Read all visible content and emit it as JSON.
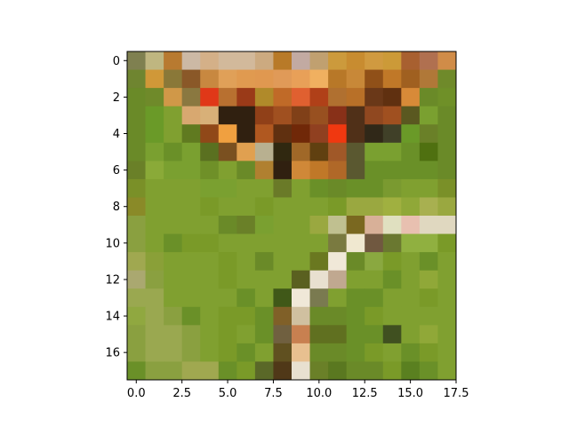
{
  "chart_data": {
    "type": "heatmap",
    "title": "",
    "xlabel": "",
    "ylabel": "",
    "xlim": [
      -0.5,
      17.5
    ],
    "ylim": [
      17.5,
      -0.5
    ],
    "grid": false,
    "x_ticks": [
      {
        "value": 0.0,
        "label": "0.0"
      },
      {
        "value": 2.5,
        "label": "2.5"
      },
      {
        "value": 5.0,
        "label": "5.0"
      },
      {
        "value": 7.5,
        "label": "7.5"
      },
      {
        "value": 10.0,
        "label": "10.0"
      },
      {
        "value": 12.5,
        "label": "12.5"
      },
      {
        "value": 15.0,
        "label": "15.0"
      },
      {
        "value": 17.5,
        "label": "17.5"
      }
    ],
    "y_ticks": [
      {
        "value": 0,
        "label": "0"
      },
      {
        "value": 2,
        "label": "2"
      },
      {
        "value": 4,
        "label": "4"
      },
      {
        "value": 6,
        "label": "6"
      },
      {
        "value": 8,
        "label": "8"
      },
      {
        "value": 10,
        "label": "10"
      },
      {
        "value": 12,
        "label": "12"
      },
      {
        "value": 14,
        "label": "14"
      },
      {
        "value": 16,
        "label": "16"
      }
    ],
    "pixels": [
      [
        "#7f8050",
        "#bfb680",
        "#b87a30",
        "#ccb9a5",
        "#d4b088",
        "#d2b99b",
        "#d2b99b",
        "#ccaa80",
        "#b87a28",
        "#c2aaa2",
        "#c0a070",
        "#cc9a3c",
        "#c88c30",
        "#d09a40",
        "#cc9a38",
        "#a86030",
        "#b07050",
        "#d08c48"
      ],
      [
        "#6f8530",
        "#d09838",
        "#8a7838",
        "#8a5828",
        "#c88840",
        "#e0a058",
        "#e09a50",
        "#e09850",
        "#e09a58",
        "#e8a058",
        "#f0b060",
        "#b87828",
        "#c88838",
        "#905018",
        "#c07828",
        "#a06020",
        "#b07838",
        "#6f8a2a"
      ],
      [
        "#6a8a28",
        "#6f8a2a",
        "#d09848",
        "#8a7840",
        "#e03818",
        "#b87030",
        "#9a3a18",
        "#b08a2a",
        "#c06a28",
        "#e06030",
        "#b04018",
        "#b07030",
        "#b87028",
        "#6a3818",
        "#603010",
        "#d88a38",
        "#6a8a28",
        "#6f9028"
      ],
      [
        "#6a8a28",
        "#6a9a28",
        "#80a030",
        "#d8a870",
        "#d8b078",
        "#302010",
        "#302010",
        "#904018",
        "#a05020",
        "#804018",
        "#985020",
        "#883018",
        "#503018",
        "#904820",
        "#a05020",
        "#5a5820",
        "#7aa030",
        "#6a8a28"
      ],
      [
        "#6a8a28",
        "#6a9a28",
        "#80a030",
        "#607a20",
        "#904818",
        "#f0a040",
        "#302010",
        "#b05820",
        "#603010",
        "#702808",
        "#904020",
        "#f03810",
        "#503018",
        "#302818",
        "#404028",
        "#6a9a28",
        "#6a8028",
        "#6a8a28"
      ],
      [
        "#6a8a28",
        "#7aa030",
        "#6a9028",
        "#7aa030",
        "#5a7020",
        "#7a5020",
        "#e0a050",
        "#b8b090",
        "#302810",
        "#a06828",
        "#604010",
        "#a05828",
        "#5a5830",
        "#7aa030",
        "#7aa030",
        "#6a9028",
        "#4f7010",
        "#6a8a28"
      ],
      [
        "#6a8028",
        "#8aaa38",
        "#7aa030",
        "#7aa030",
        "#6f9028",
        "#80a030",
        "#6a8a28",
        "#b08030",
        "#302010",
        "#d08838",
        "#c07828",
        "#b06828",
        "#5a5830",
        "#6a9028",
        "#6a9028",
        "#6a9028",
        "#6a9028",
        "#6a8a28"
      ],
      [
        "#7a9028",
        "#80a030",
        "#80a030",
        "#80a030",
        "#7aa030",
        "#7aa030",
        "#80a030",
        "#80a030",
        "#6a7a28",
        "#80a030",
        "#6a9028",
        "#6a8a28",
        "#6a9028",
        "#6a9028",
        "#7a9a30",
        "#80a030",
        "#80a030",
        "#7a9028"
      ],
      [
        "#8a8a28",
        "#80a030",
        "#80a030",
        "#80a030",
        "#7a9a28",
        "#80a030",
        "#80a030",
        "#7a9a28",
        "#80a030",
        "#80a030",
        "#80a030",
        "#7a9a28",
        "#9aa840",
        "#9aa840",
        "#a0b040",
        "#90a838",
        "#a8b050",
        "#9aa840"
      ],
      [
        "#8aa040",
        "#80a030",
        "#80a030",
        "#80a030",
        "#80a030",
        "#6a8a28",
        "#6a8028",
        "#7aa030",
        "#80a030",
        "#80a030",
        "#9aa840",
        "#c0c090",
        "#7a6820",
        "#d8b098",
        "#e0e0c0",
        "#e8c0b0",
        "#e0d8c0",
        "#e0d8c0"
      ],
      [
        "#8aa040",
        "#80a030",
        "#6a9028",
        "#7a9a28",
        "#7a9a28",
        "#80a030",
        "#80a030",
        "#80a030",
        "#80a030",
        "#80a030",
        "#80a030",
        "#7a7a40",
        "#f0e8d0",
        "#705840",
        "#6a7830",
        "#90b040",
        "#90b040",
        "#7a9a28"
      ],
      [
        "#a0a850",
        "#8aa038",
        "#80a030",
        "#80a030",
        "#80a030",
        "#7a9a28",
        "#80a030",
        "#6a8a28",
        "#80a030",
        "#80a030",
        "#6a7820",
        "#f0e8d8",
        "#6a8a28",
        "#8aa840",
        "#7a9a28",
        "#80a030",
        "#6a9028",
        "#80a030"
      ],
      [
        "#aaa870",
        "#8aa040",
        "#80a030",
        "#80a030",
        "#80a030",
        "#7a9a28",
        "#80a030",
        "#80a030",
        "#80a030",
        "#5a6020",
        "#e8e0d0",
        "#c0a890",
        "#80a030",
        "#80a030",
        "#6a9028",
        "#80a030",
        "#90a838",
        "#80a030"
      ],
      [
        "#9aa850",
        "#9aa850",
        "#80a030",
        "#80a030",
        "#80a030",
        "#80a030",
        "#6a9028",
        "#80a030",
        "#405818",
        "#f0e8d8",
        "#7a7a50",
        "#80a030",
        "#6a9028",
        "#6a9028",
        "#80a030",
        "#80a030",
        "#7a9a28",
        "#80a030"
      ],
      [
        "#90a840",
        "#9aa850",
        "#8aa040",
        "#6a9028",
        "#80a030",
        "#7a9a28",
        "#7a9a28",
        "#6a9028",
        "#806028",
        "#d0c0a0",
        "#6a8a28",
        "#6a8a28",
        "#6a9028",
        "#7a9a28",
        "#80a030",
        "#80a030",
        "#80a030",
        "#80a030"
      ],
      [
        "#8aa040",
        "#9aa850",
        "#9aa850",
        "#8aa040",
        "#80a030",
        "#7a9a28",
        "#80a030",
        "#6a9028",
        "#706040",
        "#c88050",
        "#607020",
        "#607020",
        "#6a9028",
        "#6a9028",
        "#405020",
        "#80a030",
        "#90a838",
        "#80a030"
      ],
      [
        "#8aa040",
        "#9aa850",
        "#9aa850",
        "#8aa040",
        "#80a030",
        "#7a9a28",
        "#6a9028",
        "#80a030",
        "#605020",
        "#e8c090",
        "#6a8a28",
        "#6a8a28",
        "#6a9028",
        "#7a9a28",
        "#80a030",
        "#6a9028",
        "#7a9a28",
        "#80a030"
      ],
      [
        "#6a9028",
        "#8aa040",
        "#8aa040",
        "#a0a850",
        "#a0a850",
        "#6a9028",
        "#7a9a28",
        "#5a6828",
        "#503818",
        "#e8e0d0",
        "#6a8028",
        "#5a7820",
        "#6a8a28",
        "#6a8a28",
        "#7a9a28",
        "#5a8020",
        "#6a9028",
        "#80a030"
      ]
    ]
  }
}
